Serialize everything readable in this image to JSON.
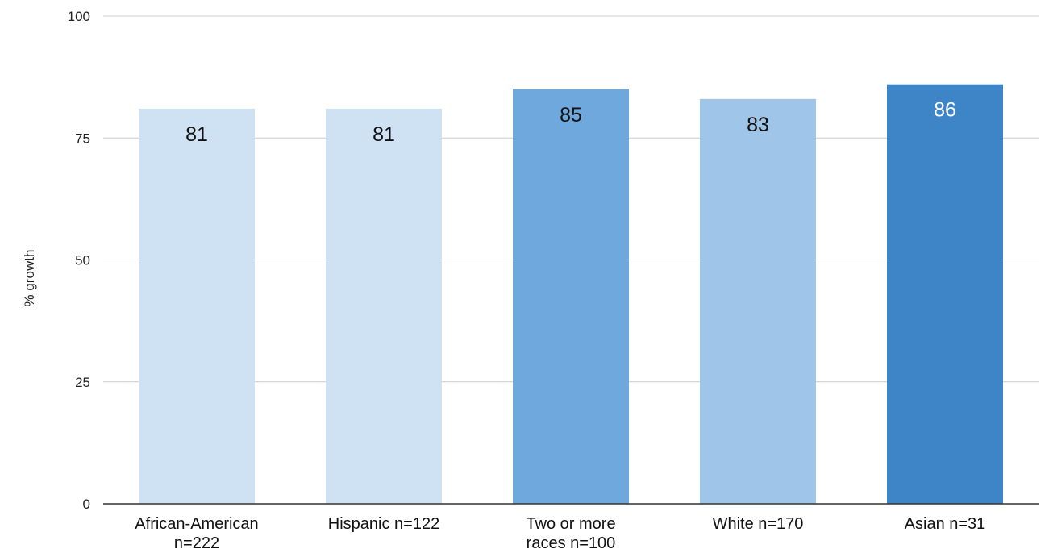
{
  "chart_data": {
    "type": "bar",
    "title": "",
    "xlabel": "",
    "ylabel": "% growth",
    "ylim": [
      0,
      100
    ],
    "yticks": [
      0,
      25,
      50,
      75,
      100
    ],
    "grid": true,
    "legend": "none",
    "categories": [
      [
        "African-American",
        "n=222"
      ],
      [
        "Hispanic n=122"
      ],
      [
        "Two or more",
        "races n=100"
      ],
      [
        "White n=170"
      ],
      [
        "Asian n=31"
      ]
    ],
    "values": [
      81,
      81,
      85,
      83,
      86
    ],
    "colors": [
      "#cfe2f3",
      "#cfe2f3",
      "#6fa8dc",
      "#9fc5e8",
      "#3d85c6"
    ],
    "label_colors": [
      "#111111",
      "#111111",
      "#111111",
      "#111111",
      "#ffffff"
    ],
    "grid_color": "#cccccc",
    "axis_color": "#333333"
  }
}
